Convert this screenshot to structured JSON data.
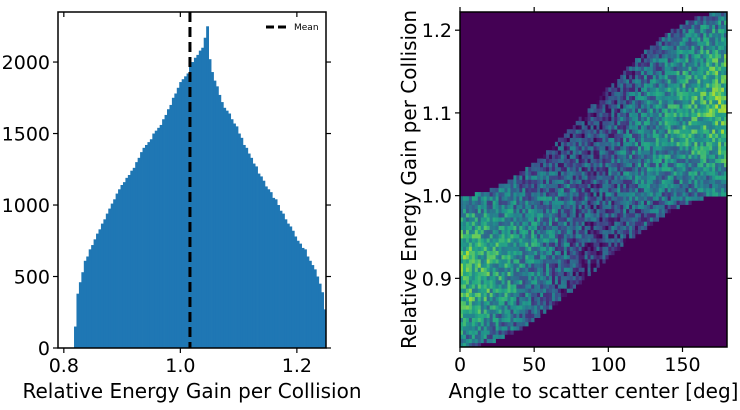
{
  "chart_data": [
    {
      "type": "bar",
      "subtype": "histogram",
      "xlabel": "Relative Energy Gain per Collision",
      "ylabel": "",
      "xlim": [
        0.79,
        1.25
      ],
      "ylim": [
        0,
        2350
      ],
      "xticks": [
        "0.8",
        "1.0",
        "1.2"
      ],
      "xtick_values": [
        0.8,
        1.0,
        1.2
      ],
      "yticks": [
        "0",
        "500",
        "1000",
        "1500",
        "2000"
      ],
      "ytick_values": [
        0,
        500,
        1000,
        1500,
        2000
      ],
      "bar_color": "#1f77b4",
      "bins": {
        "start": 0.8175,
        "width": 0.0042,
        "counts": [
          150,
          380,
          460,
          530,
          610,
          640,
          690,
          720,
          760,
          800,
          830,
          870,
          900,
          940,
          975,
          1010,
          1040,
          1080,
          1110,
          1140,
          1160,
          1190,
          1210,
          1240,
          1260,
          1300,
          1330,
          1370,
          1400,
          1420,
          1440,
          1460,
          1500,
          1520,
          1540,
          1560,
          1600,
          1630,
          1670,
          1700,
          1750,
          1780,
          1820,
          1860,
          1880,
          1900,
          1920,
          1970,
          2000,
          2030,
          2050,
          2080,
          2100,
          2170,
          2250,
          2020,
          1930,
          1870,
          1830,
          1770,
          1720,
          1680,
          1660,
          1640,
          1600,
          1570,
          1550,
          1500,
          1470,
          1420,
          1400,
          1360,
          1330,
          1290,
          1270,
          1220,
          1200,
          1170,
          1130,
          1110,
          1090,
          1050,
          1040,
          1000,
          960,
          940,
          900,
          870,
          850,
          820,
          780,
          750,
          730,
          700,
          690,
          640,
          610,
          580,
          550,
          500,
          450,
          390,
          270
        ]
      },
      "mean_line": {
        "x": 1.0165,
        "style": "dashed",
        "color": "#000000"
      },
      "legend": {
        "entries": [
          "Mean"
        ],
        "position": "top-right"
      }
    },
    {
      "type": "heatmap",
      "xlabel": "Angle to scatter center [deg]",
      "ylabel": "Relative Energy Gain per Collision",
      "xlim": [
        0,
        180
      ],
      "ylim": [
        0.817,
        1.222
      ],
      "xticks": [
        "0",
        "50",
        "100",
        "150"
      ],
      "xtick_values": [
        0,
        50,
        100,
        150
      ],
      "yticks": [
        "0.9",
        "1.0",
        "1.1",
        "1.2"
      ],
      "ytick_values": [
        0.9,
        1.0,
        1.1,
        1.2
      ],
      "colormap": "viridis",
      "background_color": "#440154",
      "grid": {
        "nx": 90,
        "ny": 80
      },
      "band": {
        "description_values": "populated region between lower and upper bounds as function of angle",
        "lower_at_0": 0.817,
        "lower_at_180": 1.0,
        "upper_at_0": 1.0,
        "upper_at_180": 1.222
      }
    }
  ]
}
